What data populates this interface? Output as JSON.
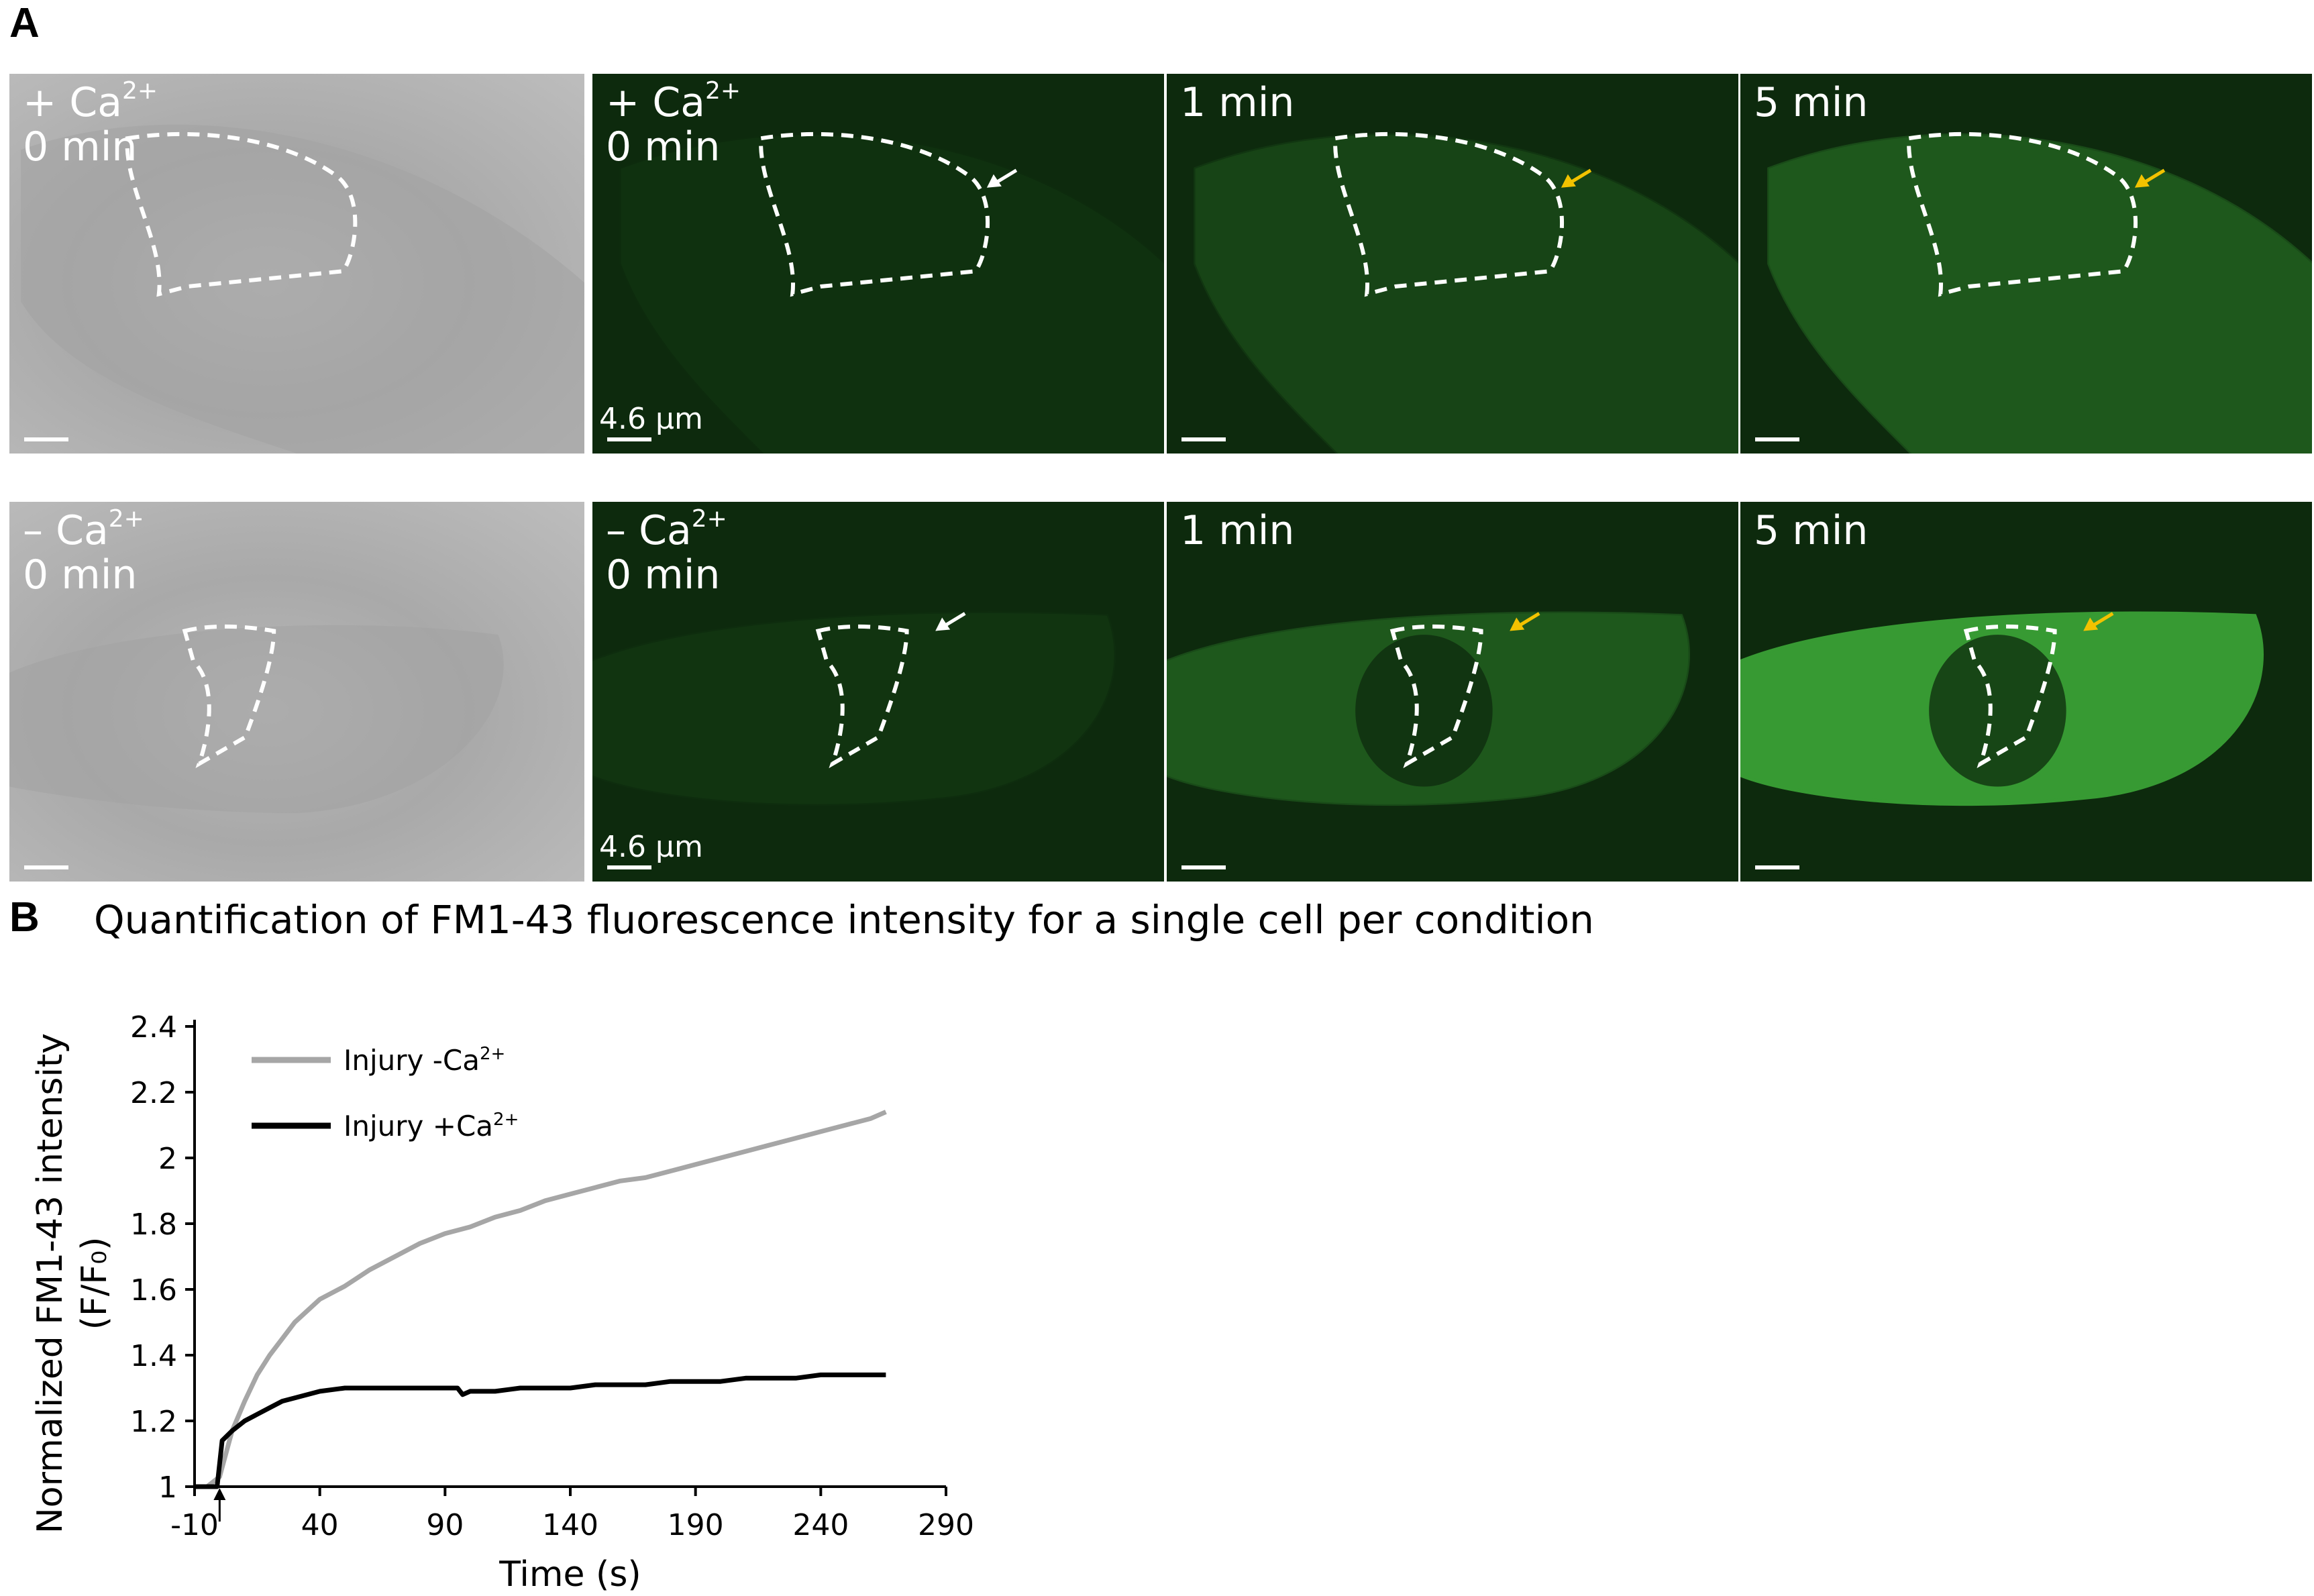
{
  "panel_a": {
    "letter": "A",
    "rows": [
      {
        "tiles": [
          {
            "kind": "brightfield",
            "sign": "+ Ca",
            "charge": "2+",
            "time": "0 min",
            "arrow": "none",
            "scale": ""
          },
          {
            "kind": "fluorescence",
            "sign": "+ Ca",
            "charge": "2+",
            "time": "0 min",
            "arrow": "white",
            "scale": "4.6 µm"
          },
          {
            "kind": "fluorescence",
            "sign": "",
            "charge": "",
            "time": "1 min",
            "arrow": "yellow",
            "scale": ""
          },
          {
            "kind": "fluorescence",
            "sign": "",
            "charge": "",
            "time": "5 min",
            "arrow": "yellow",
            "scale": ""
          }
        ]
      },
      {
        "tiles": [
          {
            "kind": "brightfield",
            "sign": "– Ca",
            "charge": "2+",
            "time": "0 min",
            "arrow": "none",
            "scale": ""
          },
          {
            "kind": "fluorescence",
            "sign": "– Ca",
            "charge": "2+",
            "time": "0 min",
            "arrow": "white",
            "scale": "4.6 µm"
          },
          {
            "kind": "fluorescence",
            "sign": "",
            "charge": "",
            "time": "1 min",
            "arrow": "yellow",
            "scale": ""
          },
          {
            "kind": "fluorescence",
            "sign": "",
            "charge": "",
            "time": "5 min",
            "arrow": "yellow",
            "scale": ""
          }
        ]
      }
    ],
    "colors": {
      "arrow_yellow": "#f2c200",
      "arrow_white": "#ffffff",
      "fluor_bg": "#0d2a0d",
      "fluor_signal": "#3fae3a"
    }
  },
  "panel_b": {
    "letter": "B",
    "title": "Quantification of FM1-43 fluorescence intensity for a single cell per condition"
  },
  "chart_data": {
    "type": "line",
    "xlabel": "Time (s)",
    "ylabel_line1": "Normalized FM1-43 intensity",
    "ylabel_line2": "(F/F₀)",
    "xlim": [
      -10,
      290
    ],
    "ylim": [
      1,
      2.4
    ],
    "xticks": [
      -10,
      40,
      90,
      140,
      190,
      240,
      290
    ],
    "xtick_labels": [
      "-10",
      "40",
      "90",
      "140",
      "190",
      "240",
      "290"
    ],
    "yticks": [
      1,
      1.2,
      1.4,
      1.6,
      1.8,
      2,
      2.2,
      2.4
    ],
    "ytick_labels": [
      "1",
      "1.2",
      "1.4",
      "1.6",
      "1.8",
      "2",
      "2.2",
      "2.4"
    ],
    "injury_marker_x": 0,
    "legend_position": "top-left",
    "series": [
      {
        "name": "Injury -Ca",
        "name_sup": "2+",
        "color": "#a6a6a6",
        "x": [
          -10,
          -5,
          0,
          5,
          10,
          15,
          20,
          25,
          30,
          40,
          50,
          60,
          70,
          80,
          90,
          100,
          110,
          120,
          130,
          140,
          150,
          160,
          170,
          180,
          190,
          200,
          210,
          220,
          230,
          240,
          250,
          260,
          266
        ],
        "y": [
          1.0,
          1.0,
          1.03,
          1.17,
          1.26,
          1.34,
          1.4,
          1.45,
          1.5,
          1.57,
          1.61,
          1.66,
          1.7,
          1.74,
          1.77,
          1.79,
          1.82,
          1.84,
          1.87,
          1.89,
          1.91,
          1.93,
          1.94,
          1.96,
          1.98,
          2.0,
          2.02,
          2.04,
          2.06,
          2.08,
          2.1,
          2.12,
          2.14
        ]
      },
      {
        "name": "Injury +Ca",
        "name_sup": "2+",
        "color": "#000000",
        "x": [
          -10,
          -5,
          -1,
          1,
          5,
          10,
          15,
          20,
          25,
          30,
          40,
          50,
          60,
          70,
          80,
          90,
          95,
          97,
          100,
          110,
          120,
          130,
          140,
          150,
          160,
          170,
          180,
          190,
          200,
          210,
          220,
          230,
          240,
          250,
          260,
          266
        ],
        "y": [
          1.0,
          1.0,
          1.0,
          1.14,
          1.17,
          1.2,
          1.22,
          1.24,
          1.26,
          1.27,
          1.29,
          1.3,
          1.3,
          1.3,
          1.3,
          1.3,
          1.3,
          1.28,
          1.29,
          1.29,
          1.3,
          1.3,
          1.3,
          1.31,
          1.31,
          1.31,
          1.32,
          1.32,
          1.32,
          1.33,
          1.33,
          1.33,
          1.34,
          1.34,
          1.34,
          1.34
        ]
      }
    ]
  }
}
